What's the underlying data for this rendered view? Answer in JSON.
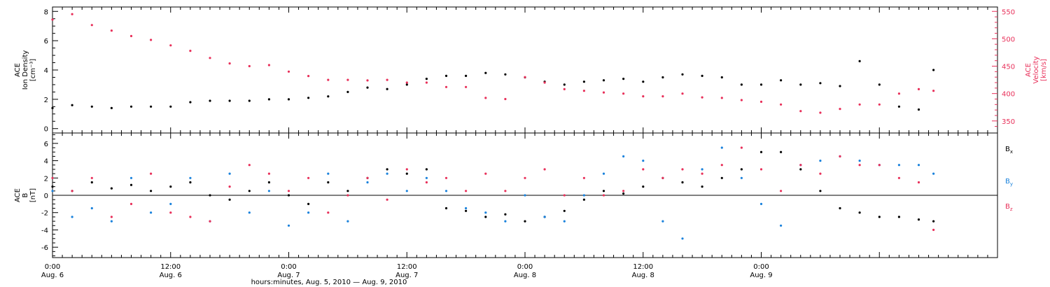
{
  "chart_data": [
    {
      "type": "scatter",
      "panel": "top",
      "ylabel_left": [
        "ACE",
        "Ion Density",
        "[cm⁻³]"
      ],
      "ylabel_right": [
        "ACE",
        "Velocity",
        "[km/s]"
      ],
      "x_range_hours": [
        0,
        96
      ],
      "left_axis": {
        "ylim": [
          -0.3,
          8.3
        ],
        "ticks": [
          0,
          2,
          4,
          6,
          8
        ]
      },
      "right_axis": {
        "ylim": [
          328,
          558
        ],
        "ticks": [
          350,
          400,
          450,
          500,
          550
        ]
      },
      "series": [
        {
          "axis": "left",
          "color": "#000000",
          "x": [
            0,
            2,
            4,
            6,
            8,
            10,
            12,
            14,
            16,
            18,
            20,
            22,
            24,
            26,
            28,
            30,
            32,
            34,
            36,
            38,
            40,
            42,
            44,
            46,
            48,
            50,
            52,
            54,
            56,
            58,
            60,
            62,
            64,
            66,
            68,
            70,
            72,
            74,
            76,
            78,
            80,
            82,
            84,
            86,
            88,
            89.5
          ],
          "y": [
            1.4,
            1.6,
            1.5,
            1.4,
            1.5,
            1.5,
            1.5,
            1.8,
            1.9,
            1.9,
            1.9,
            2.0,
            2.0,
            2.1,
            2.2,
            2.5,
            2.8,
            2.7,
            3.0,
            3.4,
            3.6,
            3.6,
            3.8,
            3.7,
            3.5,
            3.2,
            3.0,
            3.2,
            3.3,
            3.4,
            3.2,
            3.5,
            3.7,
            3.6,
            3.5,
            3.0,
            3.0,
            3.3,
            3.0,
            3.1,
            2.9,
            4.6,
            3.0,
            1.5,
            1.3,
            4.0
          ]
        },
        {
          "axis": "right",
          "color": "#e8305a",
          "x": [
            0,
            2,
            4,
            6,
            8,
            10,
            12,
            14,
            16,
            18,
            20,
            22,
            24,
            26,
            28,
            30,
            32,
            34,
            36,
            38,
            40,
            42,
            44,
            46,
            48,
            50,
            52,
            54,
            56,
            58,
            60,
            62,
            64,
            66,
            68,
            70,
            72,
            74,
            76,
            78,
            80,
            82,
            84,
            86,
            88,
            89.5
          ],
          "y": [
            535,
            545,
            525,
            515,
            505,
            498,
            488,
            478,
            465,
            455,
            450,
            452,
            440,
            432,
            425,
            425,
            424,
            425,
            420,
            420,
            412,
            412,
            392,
            390,
            430,
            420,
            408,
            405,
            402,
            400,
            395,
            395,
            400,
            393,
            392,
            388,
            385,
            380,
            368,
            365,
            372,
            380,
            380,
            400,
            408,
            405
          ]
        }
      ]
    },
    {
      "type": "scatter",
      "panel": "bottom",
      "ylabel_left": [
        "ACE",
        "B",
        "[nT]"
      ],
      "x_range_hours": [
        0,
        96
      ],
      "ylim": [
        -7.2,
        7.2
      ],
      "ticks": [
        -6,
        -4,
        -2,
        0,
        2,
        4,
        6
      ],
      "legend": "right",
      "series": [
        {
          "name": "Bx",
          "color": "#000000",
          "x": [
            0,
            2,
            4,
            6,
            8,
            10,
            12,
            14,
            16,
            18,
            20,
            22,
            24,
            26,
            28,
            30,
            32,
            34,
            36,
            38,
            40,
            42,
            44,
            46,
            48,
            50,
            52,
            54,
            56,
            58,
            60,
            62,
            64,
            66,
            68,
            70,
            72,
            74,
            76,
            78,
            80,
            82,
            84,
            86,
            88,
            89.5
          ],
          "y": [
            1.0,
            0.5,
            1.5,
            0.8,
            1.2,
            0.5,
            1.0,
            1.5,
            0.0,
            -0.5,
            0.5,
            1.5,
            0.0,
            -1.0,
            1.5,
            0.5,
            2.0,
            3.0,
            2.5,
            3.0,
            -1.5,
            -1.8,
            -2.5,
            -2.2,
            -3.0,
            -2.5,
            -1.8,
            -0.5,
            0.5,
            0.2,
            1.0,
            2.0,
            1.5,
            1.0,
            2.0,
            3.0,
            5.0,
            5.0,
            3.0,
            0.5,
            -1.5,
            -2.0,
            -2.5,
            -2.5,
            -2.8,
            -3.0
          ]
        },
        {
          "name": "By",
          "color": "#1a82dc",
          "x": [
            0,
            2,
            4,
            6,
            8,
            10,
            12,
            14,
            16,
            18,
            20,
            22,
            24,
            26,
            28,
            30,
            32,
            34,
            36,
            38,
            40,
            42,
            44,
            46,
            48,
            50,
            52,
            54,
            56,
            58,
            60,
            62,
            64,
            66,
            68,
            70,
            72,
            74,
            76,
            78,
            80,
            82,
            84,
            86,
            88,
            89.5
          ],
          "y": [
            0.5,
            -2.5,
            -1.5,
            -3.0,
            2.0,
            -2.0,
            -1.0,
            2.0,
            -3.0,
            2.5,
            -2.0,
            0.5,
            -3.5,
            -2.0,
            2.5,
            -3.0,
            1.5,
            2.5,
            0.5,
            2.0,
            0.5,
            -1.5,
            -2.0,
            -3.0,
            0.0,
            -2.5,
            -3.0,
            0.0,
            2.5,
            4.5,
            4.0,
            -3.0,
            -5.0,
            3.0,
            5.5,
            2.0,
            -1.0,
            -3.5,
            3.5,
            4.0,
            4.5,
            4.0,
            3.5,
            3.5,
            3.5,
            2.5
          ]
        },
        {
          "name": "Bz",
          "color": "#e8305a",
          "x": [
            0,
            2,
            4,
            6,
            8,
            10,
            12,
            14,
            16,
            18,
            20,
            22,
            24,
            26,
            28,
            30,
            32,
            34,
            36,
            38,
            40,
            42,
            44,
            46,
            48,
            50,
            52,
            54,
            56,
            58,
            60,
            62,
            64,
            66,
            68,
            70,
            72,
            74,
            76,
            78,
            80,
            82,
            84,
            86,
            88,
            89.5
          ],
          "y": [
            2.0,
            0.5,
            2.0,
            -2.5,
            -1.0,
            2.5,
            -2.0,
            -2.5,
            -3.0,
            1.0,
            3.5,
            2.5,
            0.5,
            2.0,
            -2.0,
            0.0,
            2.0,
            -0.5,
            3.0,
            1.5,
            2.0,
            0.5,
            2.5,
            0.5,
            2.0,
            3.0,
            0.0,
            2.0,
            0.0,
            0.5,
            3.0,
            2.0,
            3.0,
            2.5,
            3.5,
            5.5,
            3.0,
            0.5,
            3.5,
            2.5,
            4.5,
            3.5,
            3.5,
            2.0,
            1.5,
            -4.0
          ]
        }
      ]
    }
  ],
  "x_axis": {
    "tick_labels": [
      {
        "hour": 0,
        "time": "0:00",
        "day": "Aug. 6"
      },
      {
        "hour": 12,
        "time": "12:00",
        "day": "Aug. 6"
      },
      {
        "hour": 24,
        "time": "0:00",
        "day": "Aug. 7"
      },
      {
        "hour": 36,
        "time": "12:00",
        "day": "Aug. 7"
      },
      {
        "hour": 48,
        "time": "0:00",
        "day": "Aug. 8"
      },
      {
        "hour": 60,
        "time": "12:00",
        "day": "Aug. 8"
      },
      {
        "hour": 72,
        "time": "0:00",
        "day": "Aug. 9"
      }
    ],
    "xlabel": "hours:minutes, Aug.  5, 2010 — Aug.  9, 2010"
  },
  "legend_labels": {
    "bx": {
      "main": "B",
      "sub": "x"
    },
    "by": {
      "main": "B",
      "sub": "y"
    },
    "bz": {
      "main": "B",
      "sub": "z"
    }
  },
  "colors": {
    "density": "#000000",
    "velocity": "#e8305a",
    "bx": "#000000",
    "by": "#1a82dc",
    "bz": "#e8305a",
    "axis": "#000000"
  }
}
